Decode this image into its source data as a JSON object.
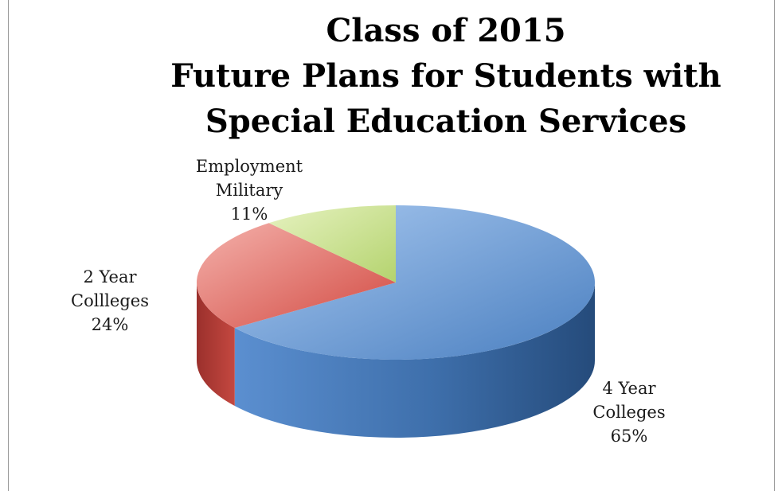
{
  "chart_data": {
    "type": "pie",
    "title_lines": [
      "Class of 2015",
      "Future Plans for Students with",
      "Special Education Services"
    ],
    "slices": [
      {
        "label_lines": [
          "4 Year",
          "Colleges"
        ],
        "value": 65,
        "value_label": "65%",
        "color": "#4f81bd"
      },
      {
        "label_lines": [
          "2 Year",
          "Collleges"
        ],
        "value": 24,
        "value_label": "24%",
        "color": "#c0504d"
      },
      {
        "label_lines": [
          "Employment",
          "Military"
        ],
        "value": 11,
        "value_label": "11%",
        "color": "#9bbb59"
      }
    ]
  }
}
